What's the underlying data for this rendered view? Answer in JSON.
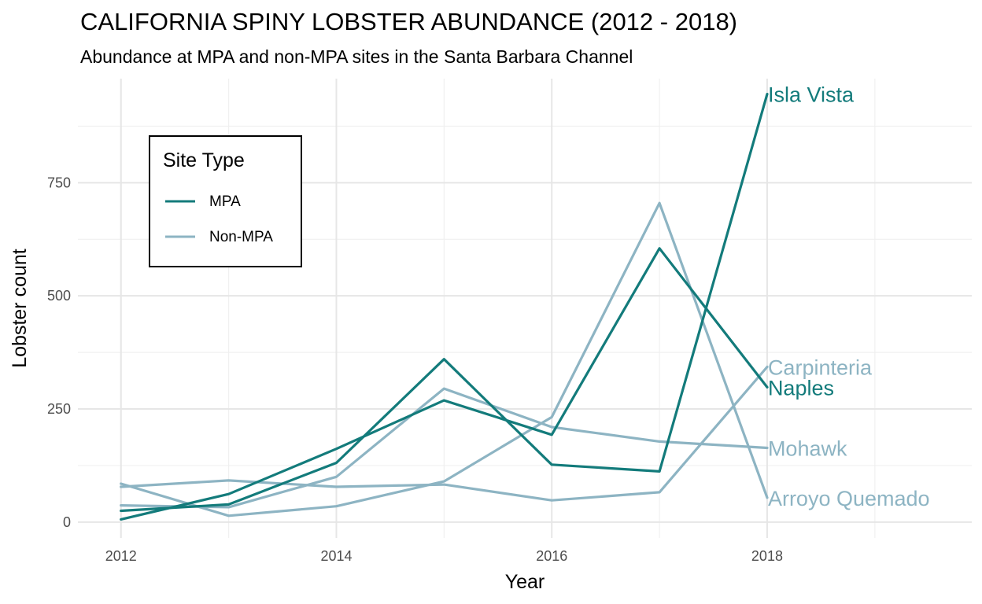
{
  "chart_data": {
    "type": "line",
    "title": "CALIFORNIA SPINY LOBSTER ABUNDANCE (2012 - 2018)",
    "subtitle": "Abundance at MPA and non-MPA sites in the Santa Barbara Channel",
    "xlabel": "Year",
    "ylabel": "Lobster count",
    "xlim": [
      2011.6,
      2019.9
    ],
    "ylim": [
      -35,
      980
    ],
    "x_ticks": [
      2012,
      2014,
      2016,
      2018
    ],
    "y_ticks": [
      0,
      250,
      500,
      750
    ],
    "grid": true,
    "legend": {
      "title": "Site Type",
      "position": "top-left",
      "entries": [
        {
          "label": "MPA",
          "color": "#137b7b"
        },
        {
          "label": "Non-MPA",
          "color": "#8db4c3"
        }
      ]
    },
    "colors": {
      "MPA": "#137b7b",
      "Non-MPA": "#8db4c3"
    },
    "x": [
      2012,
      2013,
      2014,
      2015,
      2016,
      2017,
      2018
    ],
    "series": [
      {
        "name": "Arroyo Quemado",
        "type": "Non-MPA",
        "values": [
          85,
          14,
          35,
          90,
          232,
          705,
          54
        ]
      },
      {
        "name": "Carpinteria",
        "type": "Non-MPA",
        "values": [
          78,
          92,
          78,
          83,
          48,
          66,
          343
        ]
      },
      {
        "name": "Mohawk",
        "type": "Non-MPA",
        "values": [
          37,
          33,
          100,
          295,
          210,
          178,
          164
        ]
      },
      {
        "name": "Naples",
        "type": "MPA",
        "values": [
          6,
          62,
          162,
          269,
          193,
          605,
          298
        ]
      },
      {
        "name": "Isla Vista",
        "type": "MPA",
        "values": [
          25,
          39,
          131,
          360,
          127,
          112,
          946
        ]
      }
    ]
  }
}
